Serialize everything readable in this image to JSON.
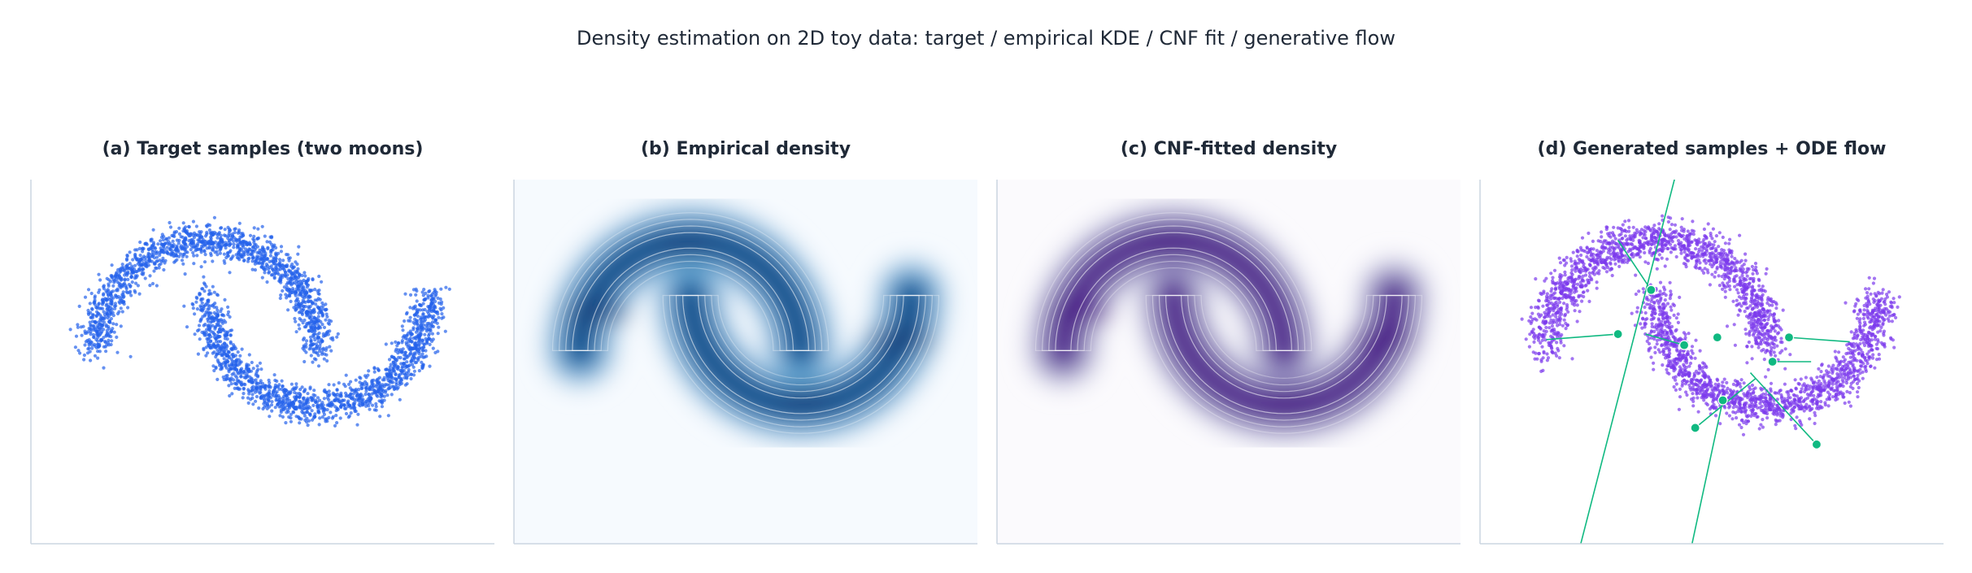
{
  "figure": {
    "title": "Density estimation on 2D toy data: target / empirical KDE / CNF fit / generative flow"
  },
  "colors": {
    "samples": "#2563eb",
    "kde_cmap": [
      "#f6fafe",
      "#c6dcef",
      "#6aaed6",
      "#2171b5",
      "#08306b"
    ],
    "cnf_cmap": [
      "#fbfafd",
      "#dadaeb",
      "#9e9ac8",
      "#6a51a3",
      "#3f007d"
    ],
    "generated": "#7c3aed",
    "flow": "#10b981",
    "axis": "#cbd5e1",
    "contour_line": "#ffffff"
  },
  "chart_data": [
    {
      "type": "scatter",
      "title": "(a) Target samples (two moons)",
      "xlabel": "",
      "ylabel": "",
      "dataset": "two moons",
      "n_points": 3000,
      "noise": 0.08,
      "xlim": [
        -1.6,
        2.6
      ],
      "ylim": [
        -1.75,
        1.55
      ],
      "grid": false,
      "series": [
        {
          "color": "#2563eb"
        }
      ]
    },
    {
      "type": "heatmap",
      "title": "(b) Empirical density",
      "xlabel": "",
      "ylabel": "",
      "method": "KDE",
      "colormap": "Blues",
      "contours": true,
      "xlim": [
        -1.6,
        2.6
      ],
      "ylim": [
        -1.75,
        1.55
      ]
    },
    {
      "type": "heatmap",
      "title": "(c) CNF-fitted density",
      "xlabel": "",
      "ylabel": "",
      "method": "CNF",
      "colormap": "Purples",
      "contours": true,
      "xlim": [
        -1.6,
        2.6
      ],
      "ylim": [
        -1.75,
        1.55
      ]
    },
    {
      "type": "scatter",
      "title": "(d) Generated samples + ODE flow",
      "xlabel": "",
      "ylabel": "",
      "xlim": [
        -1.6,
        2.6
      ],
      "ylim": [
        -1.75,
        1.55
      ],
      "series": [
        {
          "color": "#7c3aed"
        }
      ],
      "flow_lines": [
        {
          "start": [
            -1.0,
            0.1
          ],
          "end": [
            -0.35,
            0.15
          ]
        },
        {
          "start": [
            -0.35,
            1.0
          ],
          "end": [
            -0.05,
            0.55
          ]
        },
        {
          "start": [
            0.2,
            1.7
          ],
          "end": [
            -0.7,
            -1.8
          ]
        },
        {
          "start": [
            0.25,
            0.05
          ],
          "end": [
            -0.1,
            0.15
          ]
        },
        {
          "start": [
            0.55,
            0.12
          ],
          "end": [
            0.55,
            0.12
          ]
        },
        {
          "start": [
            0.35,
            -0.7
          ],
          "end": [
            0.9,
            -0.25
          ]
        },
        {
          "start": [
            0.3,
            -1.85
          ],
          "end": [
            0.6,
            -0.45
          ]
        },
        {
          "start": [
            1.45,
            -0.85
          ],
          "end": [
            0.85,
            -0.2
          ]
        },
        {
          "start": [
            1.2,
            0.12
          ],
          "end": [
            1.75,
            0.08
          ]
        },
        {
          "start": [
            1.05,
            -0.1
          ],
          "end": [
            1.4,
            -0.1
          ]
        }
      ],
      "generated_points": [
        [
          -0.35,
          0.15
        ],
        [
          -0.05,
          0.55
        ],
        [
          0.25,
          0.05
        ],
        [
          0.55,
          0.12
        ],
        [
          0.35,
          -0.7
        ],
        [
          0.6,
          -0.45
        ],
        [
          1.45,
          -0.85
        ],
        [
          1.2,
          0.12
        ],
        [
          1.05,
          -0.1
        ]
      ]
    }
  ]
}
